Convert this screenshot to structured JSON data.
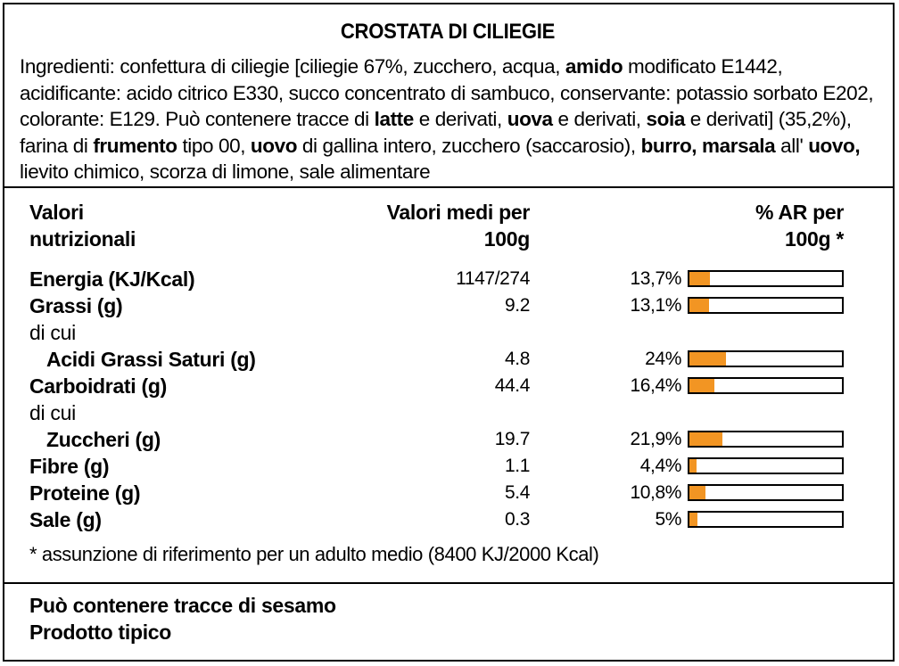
{
  "title": "CROSTATA DI CILIEGIE",
  "ingredients": [
    {
      "t": "Ingredienti: confettura di ciliegie [ciliegie 67%, zucchero, acqua, "
    },
    {
      "t": "amido",
      "b": true
    },
    {
      "t": " modificato E1442, acidificante: acido citrico E330, succo concentrato di sambuco, conservante: potassio sorbato E202, colorante: E129. Può contenere tracce di "
    },
    {
      "t": "latte",
      "b": true
    },
    {
      "t": " e derivati, "
    },
    {
      "t": "uova",
      "b": true
    },
    {
      "t": " e derivati, "
    },
    {
      "t": "soia",
      "b": true
    },
    {
      "t": " e derivati] (35,2%), farina di "
    },
    {
      "t": "frumento",
      "b": true
    },
    {
      "t": " tipo 00, "
    },
    {
      "t": "uovo",
      "b": true
    },
    {
      "t": " di gallina intero, zucchero (saccarosio), "
    },
    {
      "t": "burro, marsala",
      "b": true
    },
    {
      "t": " all' "
    },
    {
      "t": "uovo,",
      "b": true
    },
    {
      "t": " lievito chimico, scorza di limone, sale alimentare"
    }
  ],
  "table_header": {
    "label_line1": "Valori",
    "label_line2": "nutrizionali",
    "per100_line1": "Valori medi per",
    "per100_line2": "100g",
    "ar_line1": "% AR per",
    "ar_line2": "100g *"
  },
  "nutrition_rows": [
    {
      "name": "Energia (KJ/Kcal)",
      "style": "bold",
      "value": "1147/274",
      "pct": "13,7%",
      "ar": 13.7
    },
    {
      "name": "Grassi (g)",
      "style": "bold",
      "value": "9.2",
      "pct": "13,1%",
      "ar": 13.1
    },
    {
      "name": "di cui",
      "style": "plain"
    },
    {
      "name": "Acidi Grassi Saturi (g)",
      "style": "bold-indent",
      "value": "4.8",
      "pct": "24%",
      "ar": 24
    },
    {
      "name": "Carboidrati (g)",
      "style": "bold",
      "value": "44.4",
      "pct": "16,4%",
      "ar": 16.4
    },
    {
      "name": "di cui",
      "style": "plain"
    },
    {
      "name": "Zuccheri (g)",
      "style": "bold-indent",
      "value": "19.7",
      "pct": "21,9%",
      "ar": 21.9
    },
    {
      "name": "Fibre (g)",
      "style": "bold",
      "value": "1.1",
      "pct": "4,4%",
      "ar": 4.4
    },
    {
      "name": "Proteine (g)",
      "style": "bold",
      "value": "5.4",
      "pct": "10,8%",
      "ar": 10.8
    },
    {
      "name": "Sale (g)",
      "style": "bold",
      "value": "0.3",
      "pct": "5%",
      "ar": 5
    }
  ],
  "bar_color": "#f29523",
  "reference_note": "* assunzione di riferimento per un adulto medio (8400 KJ/2000 Kcal)",
  "footer_line1": "Può contenere tracce di sesamo",
  "footer_line2": "Prodotto tipico"
}
